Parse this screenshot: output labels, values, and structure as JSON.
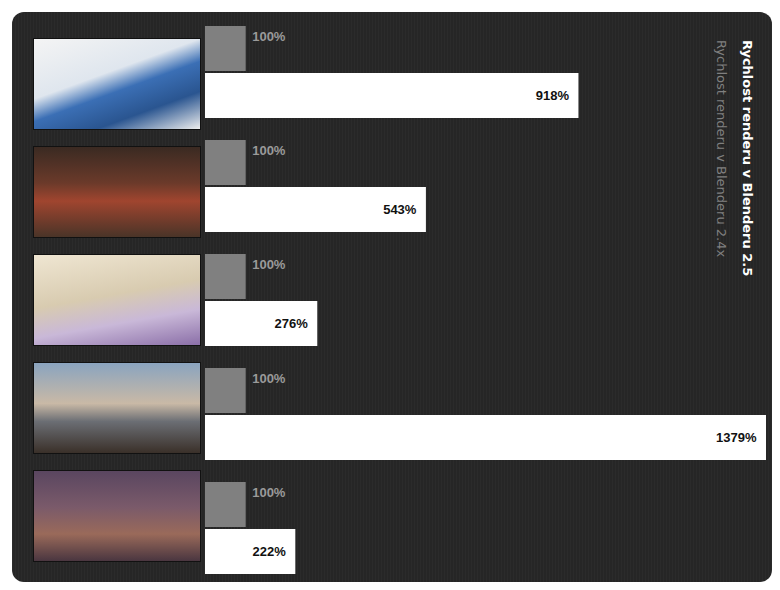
{
  "chart_data": {
    "type": "bar",
    "orientation": "horizontal",
    "categories": [
      null,
      null,
      null,
      null,
      null
    ],
    "series": [
      {
        "name": "Rychlost renderu v Blenderu 2.4x",
        "color": "#808080",
        "values": [
          100,
          100,
          100,
          100,
          100
        ],
        "value_labels": [
          "100%",
          "100%",
          "100%",
          "100%",
          "100%"
        ]
      },
      {
        "name": "Rychlost renderu v Blenderu 2.5",
        "color": "#ffffff",
        "values": [
          918,
          543,
          276,
          1379,
          222
        ],
        "value_labels": [
          "918%",
          "543%",
          "276%",
          "1379%",
          "222%"
        ]
      }
    ],
    "data_labels": true,
    "tick_labels": false,
    "legend": "right"
  }
}
